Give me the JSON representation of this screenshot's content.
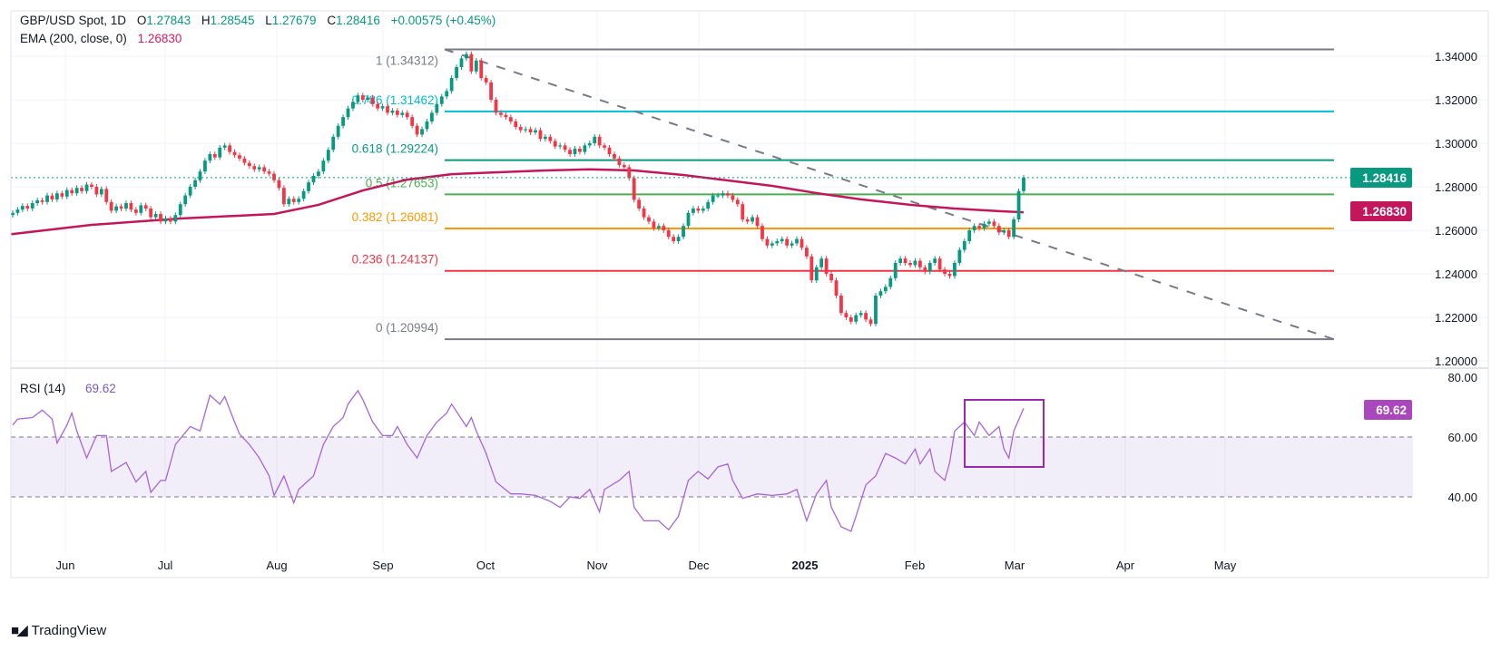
{
  "header": {
    "symbol": "GBP/USD Spot, 1D",
    "o_label": "O",
    "o_value": "1.27843",
    "h_label": "H",
    "h_value": "1.28545",
    "l_label": "L",
    "l_value": "1.27679",
    "c_label": "C",
    "c_value": "1.28416",
    "change": "+0.00575 (+0.45%)",
    "ema_label": "EMA (200, close, 0)",
    "ema_value": "1.26830"
  },
  "branding": {
    "logo_text": "TradingView"
  },
  "colors": {
    "up": "#089981",
    "down": "#f23645",
    "ema": "#c2185b",
    "rsi": "#a766d6",
    "rsi_box": "#9c27b0",
    "trendline": "#787b86"
  },
  "chart_data": [
    {
      "type": "candlestick",
      "title": "GBP/USD Spot, 1D",
      "x_tick_labels": [
        "Jun",
        "Jul",
        "Aug",
        "Sep",
        "Oct",
        "Nov",
        "Dec",
        "2025",
        "Feb",
        "Mar",
        "Apr",
        "May"
      ],
      "y_tick_labels": [
        "1.20000",
        "1.22000",
        "1.24000",
        "1.26000",
        "1.28000",
        "1.30000",
        "1.32000",
        "1.34000"
      ],
      "ylim": [
        1.2,
        1.34
      ],
      "grid": true,
      "closes": [
        1.268,
        1.2695,
        1.2712,
        1.27,
        1.2725,
        1.2738,
        1.273,
        1.276,
        1.2742,
        1.277,
        1.2755,
        1.2785,
        1.277,
        1.2795,
        1.278,
        1.281,
        1.28,
        1.2765,
        1.279,
        1.273,
        1.269,
        1.271,
        1.27,
        1.2725,
        1.2695,
        1.268,
        1.2715,
        1.27,
        1.266,
        1.2675,
        1.264,
        1.2655,
        1.264,
        1.267,
        1.272,
        1.276,
        1.28,
        1.283,
        1.287,
        1.292,
        1.295,
        1.2935,
        1.298,
        1.299,
        1.296,
        1.2945,
        1.293,
        1.291,
        1.2895,
        1.288,
        1.289,
        1.287,
        1.286,
        1.283,
        1.2795,
        1.272,
        1.2745,
        1.273,
        1.2745,
        1.278,
        1.282,
        1.285,
        1.287,
        1.292,
        1.297,
        1.303,
        1.308,
        1.312,
        1.316,
        1.319,
        1.322,
        1.32,
        1.321,
        1.318,
        1.316,
        1.317,
        1.314,
        1.315,
        1.313,
        1.314,
        1.312,
        1.308,
        1.304,
        1.3065,
        1.31,
        1.314,
        1.318,
        1.3215,
        1.324,
        1.33,
        1.335,
        1.339,
        1.341,
        1.333,
        1.338,
        1.33,
        1.328,
        1.32,
        1.314,
        1.313,
        1.312,
        1.31,
        1.3075,
        1.306,
        1.3065,
        1.305,
        1.306,
        1.302,
        1.303,
        1.301,
        1.2985,
        1.299,
        1.297,
        1.295,
        1.2975,
        1.296,
        1.299,
        1.3,
        1.303,
        1.299,
        1.298,
        1.295,
        1.293,
        1.29,
        1.289,
        1.284,
        1.274,
        1.27,
        1.266,
        1.264,
        1.261,
        1.262,
        1.26,
        1.257,
        1.255,
        1.257,
        1.262,
        1.268,
        1.27,
        1.269,
        1.27,
        1.273,
        1.276,
        1.276,
        1.277,
        1.276,
        1.274,
        1.272,
        1.265,
        1.264,
        1.266,
        1.262,
        1.256,
        1.253,
        1.254,
        1.255,
        1.256,
        1.253,
        1.254,
        1.256,
        1.252,
        1.248,
        1.237,
        1.243,
        1.247,
        1.24,
        1.237,
        1.23,
        1.222,
        1.22,
        1.218,
        1.221,
        1.222,
        1.219,
        1.217,
        1.23,
        1.232,
        1.234,
        1.238,
        1.245,
        1.247,
        1.245,
        1.244,
        1.246,
        1.243,
        1.241,
        1.245,
        1.247,
        1.242,
        1.24,
        1.239,
        1.245,
        1.251,
        1.255,
        1.26,
        1.262,
        1.261,
        1.263,
        1.264,
        1.262,
        1.259,
        1.26,
        1.257,
        1.265,
        1.278,
        1.2842
      ],
      "ema_samples": [
        [
          0,
          1.2583
        ],
        [
          16,
          1.2625
        ],
        [
          34,
          1.2654
        ],
        [
          53,
          1.2675
        ],
        [
          62,
          1.2717
        ],
        [
          71,
          1.2783
        ],
        [
          80,
          1.2833
        ],
        [
          89,
          1.2858
        ],
        [
          99,
          1.2867
        ],
        [
          108,
          1.2875
        ],
        [
          117,
          1.288
        ],
        [
          126,
          1.2875
        ],
        [
          136,
          1.2854
        ],
        [
          145,
          1.2829
        ],
        [
          154,
          1.2804
        ],
        [
          163,
          1.2771
        ],
        [
          172,
          1.2742
        ],
        [
          182,
          1.2717
        ],
        [
          191,
          1.27
        ],
        [
          200,
          1.2688
        ],
        [
          205,
          1.2683
        ]
      ],
      "last_price": "1.28416",
      "ema_last": "1.26830",
      "fibonacci": [
        {
          "level": "1",
          "price": 1.34312,
          "label": "1 (1.34312)",
          "color": "#787b86"
        },
        {
          "level": "0.786",
          "price": 1.31462,
          "label": "0.786 (1.31462)",
          "color": "#00bcd4"
        },
        {
          "level": "0.618",
          "price": 1.29224,
          "label": "0.618 (1.29224)",
          "color": "#089981"
        },
        {
          "level": "0.5",
          "price": 1.27653,
          "label": "0.5 (1.27653)",
          "color": "#4caf50"
        },
        {
          "level": "0.382",
          "price": 1.26081,
          "label": "0.382 (1.26081)",
          "color": "#ff9800"
        },
        {
          "level": "0.236",
          "price": 1.24137,
          "label": "0.236 (1.24137)",
          "color": "#f23645"
        },
        {
          "level": "0",
          "price": 1.20994,
          "label": "0 (1.20994)",
          "color": "#787b86"
        }
      ]
    },
    {
      "type": "line",
      "title": "RSI (14)",
      "value_label": "69.62",
      "ylim": [
        20,
        82
      ],
      "y_tick_labels": [
        "40.00",
        "60.00",
        "80.00"
      ],
      "band": [
        40,
        60
      ],
      "samples": [
        [
          0,
          64
        ],
        [
          1,
          66
        ],
        [
          4,
          66.5
        ],
        [
          6,
          69
        ],
        [
          8,
          66
        ],
        [
          9,
          58
        ],
        [
          11,
          64
        ],
        [
          12,
          68
        ],
        [
          13,
          62
        ],
        [
          15,
          53
        ],
        [
          17,
          60.5
        ],
        [
          19,
          60.5
        ],
        [
          20,
          48.5
        ],
        [
          23,
          51.5
        ],
        [
          25,
          45
        ],
        [
          27,
          48.5
        ],
        [
          28,
          41.5
        ],
        [
          30,
          45.5
        ],
        [
          31,
          45.5
        ],
        [
          33,
          57.5
        ],
        [
          36,
          63.5
        ],
        [
          38,
          62
        ],
        [
          40,
          74
        ],
        [
          42,
          71
        ],
        [
          43,
          73.5
        ],
        [
          45,
          65
        ],
        [
          46,
          61
        ],
        [
          48,
          57.5
        ],
        [
          50,
          53
        ],
        [
          52,
          47
        ],
        [
          53,
          40.5
        ],
        [
          55,
          47
        ],
        [
          57,
          38
        ],
        [
          58,
          42.5
        ],
        [
          61,
          47
        ],
        [
          63,
          57.5
        ],
        [
          65,
          63.5
        ],
        [
          67,
          66.5
        ],
        [
          68,
          71
        ],
        [
          70,
          75.5
        ],
        [
          71,
          72.5
        ],
        [
          73,
          65
        ],
        [
          75,
          60.5
        ],
        [
          77,
          60.5
        ],
        [
          78,
          63.5
        ],
        [
          80,
          57.5
        ],
        [
          82,
          53
        ],
        [
          84,
          60.5
        ],
        [
          86,
          65
        ],
        [
          88,
          68
        ],
        [
          89,
          71
        ],
        [
          92,
          63.5
        ],
        [
          93,
          66.5
        ],
        [
          94,
          62
        ],
        [
          96,
          54.5
        ],
        [
          98,
          45
        ],
        [
          101,
          41
        ],
        [
          103,
          41
        ],
        [
          106,
          40.5
        ],
        [
          109,
          38.5
        ],
        [
          111,
          36.5
        ],
        [
          113,
          40
        ],
        [
          115,
          39.5
        ],
        [
          117,
          42.5
        ],
        [
          119,
          35
        ],
        [
          120,
          42.5
        ],
        [
          123,
          45.5
        ],
        [
          125,
          48.5
        ],
        [
          126,
          36.5
        ],
        [
          128,
          32
        ],
        [
          131,
          32
        ],
        [
          133,
          29
        ],
        [
          135,
          33.5
        ],
        [
          137,
          45.5
        ],
        [
          139,
          48.5
        ],
        [
          141,
          46
        ],
        [
          143,
          50
        ],
        [
          145,
          51
        ],
        [
          146,
          45.5
        ],
        [
          148,
          39.5
        ],
        [
          151,
          41
        ],
        [
          154,
          40.5
        ],
        [
          157,
          41
        ],
        [
          159,
          42.5
        ],
        [
          161,
          32
        ],
        [
          163,
          41
        ],
        [
          165,
          45.5
        ],
        [
          166,
          36.5
        ],
        [
          168,
          30
        ],
        [
          170,
          28.5
        ],
        [
          171,
          33.5
        ],
        [
          173,
          44
        ],
        [
          175,
          47
        ],
        [
          177,
          54.5
        ],
        [
          179,
          53
        ],
        [
          181,
          51
        ],
        [
          183,
          56
        ],
        [
          184,
          51
        ],
        [
          186,
          56
        ],
        [
          187,
          48.5
        ],
        [
          189,
          45.5
        ],
        [
          190,
          51.5
        ],
        [
          191,
          62
        ],
        [
          193,
          65
        ],
        [
          195,
          60.5
        ],
        [
          196,
          65
        ],
        [
          198,
          60.5
        ],
        [
          200,
          63.5
        ],
        [
          201,
          56
        ],
        [
          202,
          53
        ],
        [
          203,
          62
        ],
        [
          205,
          69.6
        ]
      ]
    }
  ]
}
